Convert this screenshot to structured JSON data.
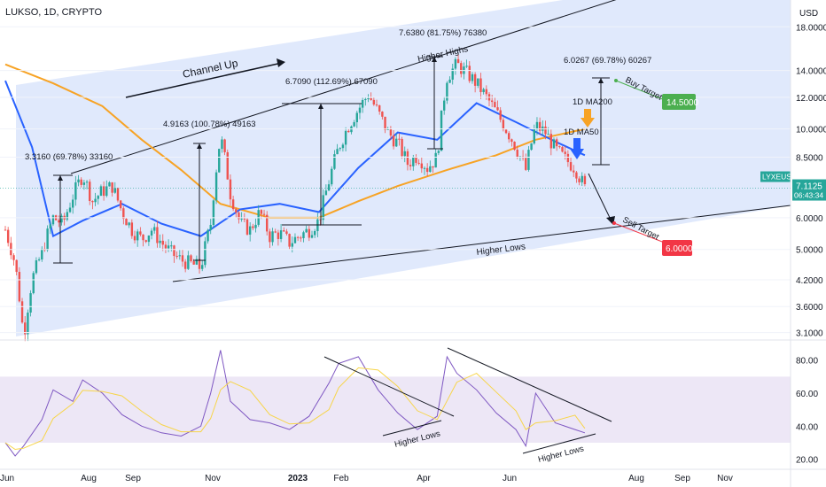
{
  "header": {
    "symbol_line": "LUKSO, 1D, CRYPTO",
    "currency": "USD"
  },
  "chart_data": [
    {
      "type": "candlestick",
      "symbol": "LYXEUSD",
      "scale": "log",
      "ylim": [
        3.0,
        21.0
      ],
      "y_ticks": [
        "18.0000",
        "14.0000",
        "12.0000",
        "10.0000",
        "8.5000",
        "7.1125",
        "6.0000",
        "5.0000",
        "4.2000",
        "3.6000",
        "3.1000"
      ],
      "x_ticks": [
        "Jun",
        "Aug",
        "Sep",
        "Nov",
        "2023",
        "Feb",
        "Apr",
        "Jun",
        "Aug",
        "Sep",
        "Nov"
      ],
      "last_price_label": "LYXEUSD",
      "last_price": "7.1125",
      "countdown": "06:43:34",
      "price_path": [
        [
          "2022-06-01",
          5.6
        ],
        [
          "2022-06-08",
          4.6
        ],
        [
          "2022-06-14",
          3.0
        ],
        [
          "2022-06-20",
          4.2
        ],
        [
          "2022-06-27",
          4.9
        ],
        [
          "2022-07-05",
          6.0
        ],
        [
          "2022-07-12",
          5.8
        ],
        [
          "2022-07-19",
          6.8
        ],
        [
          "2022-07-26",
          7.7
        ],
        [
          "2022-08-02",
          6.6
        ],
        [
          "2022-08-09",
          7.0
        ],
        [
          "2022-08-16",
          7.2
        ],
        [
          "2022-08-23",
          6.2
        ],
        [
          "2022-08-30",
          5.6
        ],
        [
          "2022-09-06",
          5.3
        ],
        [
          "2022-09-13",
          5.6
        ],
        [
          "2022-09-20",
          5.2
        ],
        [
          "2022-09-27",
          4.9
        ],
        [
          "2022-10-04",
          4.7
        ],
        [
          "2022-10-11",
          4.6
        ],
        [
          "2022-10-18",
          4.5
        ],
        [
          "2022-10-25",
          5.8
        ],
        [
          "2022-11-01",
          9.6
        ],
        [
          "2022-11-08",
          6.9
        ],
        [
          "2022-11-15",
          5.8
        ],
        [
          "2022-11-22",
          5.6
        ],
        [
          "2022-11-29",
          6.2
        ],
        [
          "2022-12-06",
          5.4
        ],
        [
          "2022-12-13",
          5.5
        ],
        [
          "2022-12-20",
          5.2
        ],
        [
          "2022-12-27",
          5.4
        ],
        [
          "2023-01-03",
          5.6
        ],
        [
          "2023-01-10",
          5.9
        ],
        [
          "2023-01-17",
          7.4
        ],
        [
          "2023-01-24",
          9.0
        ],
        [
          "2023-01-31",
          10.2
        ],
        [
          "2023-02-07",
          11.2
        ],
        [
          "2023-02-14",
          12.2
        ],
        [
          "2023-02-21",
          11.0
        ],
        [
          "2023-02-28",
          9.8
        ],
        [
          "2023-03-07",
          9.2
        ],
        [
          "2023-03-14",
          8.2
        ],
        [
          "2023-03-21",
          8.6
        ],
        [
          "2023-03-28",
          8.0
        ],
        [
          "2023-04-04",
          8.5
        ],
        [
          "2023-04-11",
          13.5
        ],
        [
          "2023-04-18",
          14.5
        ],
        [
          "2023-04-25",
          13.8
        ],
        [
          "2023-05-02",
          13.0
        ],
        [
          "2023-05-09",
          12.0
        ],
        [
          "2023-05-16",
          11.0
        ],
        [
          "2023-05-23",
          10.0
        ],
        [
          "2023-05-30",
          9.0
        ],
        [
          "2023-06-06",
          7.9
        ],
        [
          "2023-06-13",
          10.2
        ],
        [
          "2023-06-20",
          9.8
        ],
        [
          "2023-06-27",
          8.9
        ],
        [
          "2023-07-04",
          8.4
        ],
        [
          "2023-07-11",
          8.0
        ],
        [
          "2023-07-18",
          7.11
        ]
      ],
      "ma50_path": [
        [
          "2022-06-01",
          13.2
        ],
        [
          "2022-06-20",
          9.0
        ],
        [
          "2022-07-05",
          5.4
        ],
        [
          "2022-07-26",
          5.9
        ],
        [
          "2022-08-23",
          6.5
        ],
        [
          "2022-09-20",
          5.8
        ],
        [
          "2022-10-18",
          5.4
        ],
        [
          "2022-11-15",
          6.3
        ],
        [
          "2022-12-13",
          6.5
        ],
        [
          "2023-01-10",
          6.2
        ],
        [
          "2023-02-07",
          8.0
        ],
        [
          "2023-03-07",
          9.8
        ],
        [
          "2023-04-04",
          9.4
        ],
        [
          "2023-05-02",
          11.6
        ],
        [
          "2023-05-30",
          10.4
        ],
        [
          "2023-06-27",
          9.3
        ],
        [
          "2023-07-18",
          8.6
        ]
      ],
      "ma200_path": [
        [
          "2022-06-01",
          14.5
        ],
        [
          "2022-07-05",
          13.0
        ],
        [
          "2022-08-09",
          11.4
        ],
        [
          "2022-09-06",
          9.4
        ],
        [
          "2022-10-04",
          7.9
        ],
        [
          "2022-11-01",
          6.5
        ],
        [
          "2022-12-06",
          6.0
        ],
        [
          "2023-01-10",
          6.0
        ],
        [
          "2023-02-07",
          6.6
        ],
        [
          "2023-03-07",
          7.2
        ],
        [
          "2023-04-11",
          7.9
        ],
        [
          "2023-05-16",
          8.6
        ],
        [
          "2023-06-13",
          9.4
        ],
        [
          "2023-07-18",
          10.0
        ]
      ],
      "annotations": [
        {
          "text": "Channel Up"
        },
        {
          "text": "Higher Highs"
        },
        {
          "text": "Higher Lows"
        },
        {
          "text": "3.3160 (69.78%) 33160"
        },
        {
          "text": "4.9163 (100.78%) 49163"
        },
        {
          "text": "6.7090 (112.69%) 67090"
        },
        {
          "text": "7.6380 (81.75%) 76380"
        },
        {
          "text": "6.0267 (69.78%) 60267"
        },
        {
          "text": "1D MA200"
        },
        {
          "text": "1D MA50"
        },
        {
          "text": "Buy Target"
        },
        {
          "text": "Sell Target"
        },
        {
          "text": "14.5000",
          "value": 14.5
        },
        {
          "text": "6.0000",
          "value": 6.0
        }
      ],
      "colors": {
        "up": "#26a69a",
        "down": "#ef5350",
        "ma50": "#2962ff",
        "ma200": "#f7a325",
        "channel": "#dbe5fb",
        "buy": "#4caf50",
        "sell": "#f23645"
      }
    },
    {
      "type": "line",
      "indicator": "RSI",
      "ylim": [
        15,
        90
      ],
      "y_ticks": [
        "80.00",
        "60.00",
        "40.00",
        "20.00"
      ],
      "rsi_path": [
        [
          "2022-06-01",
          30
        ],
        [
          "2022-06-08",
          22
        ],
        [
          "2022-06-14",
          28
        ],
        [
          "2022-06-27",
          44
        ],
        [
          "2022-07-05",
          62
        ],
        [
          "2022-07-19",
          55
        ],
        [
          "2022-07-26",
          68
        ],
        [
          "2022-08-09",
          60
        ],
        [
          "2022-08-23",
          47
        ],
        [
          "2022-09-06",
          40
        ],
        [
          "2022-09-20",
          36
        ],
        [
          "2022-10-04",
          34
        ],
        [
          "2022-10-18",
          40
        ],
        [
          "2022-10-25",
          60
        ],
        [
          "2022-11-01",
          86
        ],
        [
          "2022-11-08",
          55
        ],
        [
          "2022-11-22",
          44
        ],
        [
          "2022-12-06",
          42
        ],
        [
          "2022-12-20",
          38
        ],
        [
          "2023-01-03",
          46
        ],
        [
          "2023-01-17",
          66
        ],
        [
          "2023-01-24",
          78
        ],
        [
          "2023-02-07",
          82
        ],
        [
          "2023-02-21",
          62
        ],
        [
          "2023-03-07",
          48
        ],
        [
          "2023-03-21",
          38
        ],
        [
          "2023-04-04",
          46
        ],
        [
          "2023-04-11",
          82
        ],
        [
          "2023-04-18",
          72
        ],
        [
          "2023-05-02",
          62
        ],
        [
          "2023-05-16",
          48
        ],
        [
          "2023-05-30",
          38
        ],
        [
          "2023-06-06",
          28
        ],
        [
          "2023-06-13",
          60
        ],
        [
          "2023-06-27",
          42
        ],
        [
          "2023-07-11",
          38
        ],
        [
          "2023-07-18",
          36
        ]
      ],
      "annotations": [
        {
          "text": "Higher Lows"
        },
        {
          "text": "Higher Lows"
        }
      ],
      "colors": {
        "rsi": "#7e57c2",
        "signal": "#f7d54a",
        "band": "#ede7f6"
      }
    }
  ]
}
